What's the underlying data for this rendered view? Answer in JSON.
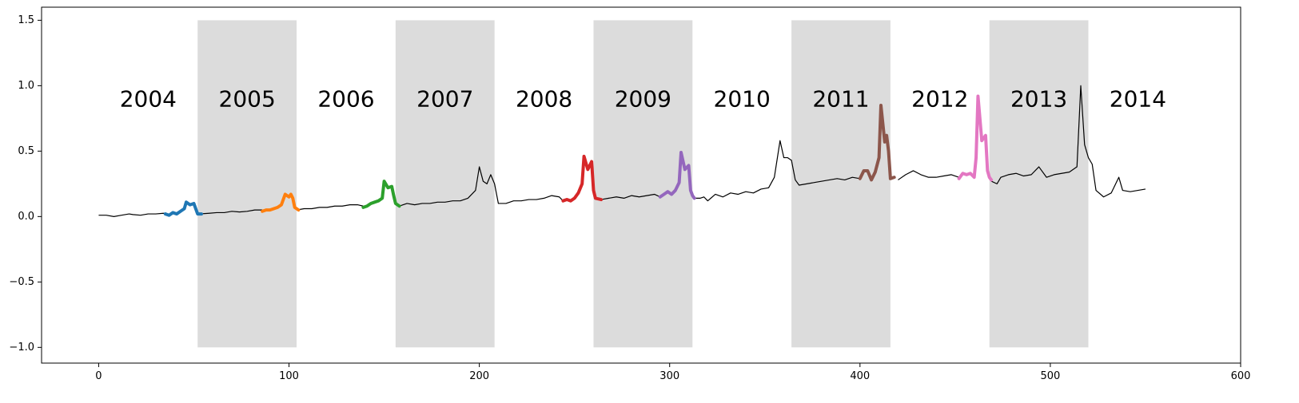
{
  "chart_data": {
    "type": "line",
    "title": "",
    "xlabel": "",
    "ylabel": "",
    "xlim": [
      -30,
      600
    ],
    "ylim": [
      -1.12,
      1.6
    ],
    "xticks": [
      0,
      100,
      200,
      300,
      400,
      500,
      600
    ],
    "yticks": [
      -1.0,
      -0.5,
      0.0,
      0.5,
      1.0,
      1.5
    ],
    "ytick_labels": [
      "−1.0",
      "−0.5",
      "0.0",
      "0.5",
      "1.0",
      "1.5"
    ],
    "grid": false,
    "colors": {
      "base": "#000000",
      "shade": "#dcdcdc",
      "highlights": [
        "#1f77b4",
        "#ff7f0e",
        "#2ca02c",
        "#d62728",
        "#9467bd",
        "#8c564b",
        "#e377c2"
      ]
    },
    "year_bands": [
      {
        "label": "2004",
        "x_start": 0,
        "x_end": 52,
        "shaded": false
      },
      {
        "label": "2005",
        "x_start": 52,
        "x_end": 104,
        "shaded": true
      },
      {
        "label": "2006",
        "x_start": 104,
        "x_end": 156,
        "shaded": false
      },
      {
        "label": "2007",
        "x_start": 156,
        "x_end": 208,
        "shaded": true
      },
      {
        "label": "2008",
        "x_start": 208,
        "x_end": 260,
        "shaded": false
      },
      {
        "label": "2009",
        "x_start": 260,
        "x_end": 312,
        "shaded": true
      },
      {
        "label": "2010",
        "x_start": 312,
        "x_end": 364,
        "shaded": false
      },
      {
        "label": "2011",
        "x_start": 364,
        "x_end": 416,
        "shaded": true
      },
      {
        "label": "2012",
        "x_start": 416,
        "x_end": 468,
        "shaded": false
      },
      {
        "label": "2013",
        "x_start": 468,
        "x_end": 520,
        "shaded": true
      },
      {
        "label": "2014",
        "x_start": 520,
        "x_end": 572,
        "shaded": false
      }
    ],
    "band_y_range": [
      -1.0,
      1.5
    ],
    "year_label_y": 0.9,
    "base_series": [
      [
        0,
        0.01
      ],
      [
        4,
        0.01
      ],
      [
        8,
        0.0
      ],
      [
        12,
        0.01
      ],
      [
        16,
        0.02
      ],
      [
        18,
        0.015
      ],
      [
        22,
        0.01
      ],
      [
        26,
        0.02
      ],
      [
        30,
        0.02
      ],
      [
        34,
        0.025
      ],
      [
        36,
        0.02
      ],
      [
        53,
        0.02
      ],
      [
        58,
        0.025
      ],
      [
        62,
        0.03
      ],
      [
        66,
        0.03
      ],
      [
        70,
        0.04
      ],
      [
        74,
        0.035
      ],
      [
        78,
        0.04
      ],
      [
        82,
        0.05
      ],
      [
        86,
        0.05
      ],
      [
        104,
        0.05
      ],
      [
        108,
        0.06
      ],
      [
        112,
        0.06
      ],
      [
        116,
        0.07
      ],
      [
        120,
        0.07
      ],
      [
        124,
        0.08
      ],
      [
        128,
        0.08
      ],
      [
        132,
        0.09
      ],
      [
        136,
        0.09
      ],
      [
        139,
        0.08
      ],
      [
        158,
        0.08
      ],
      [
        162,
        0.1
      ],
      [
        166,
        0.09
      ],
      [
        170,
        0.1
      ],
      [
        174,
        0.1
      ],
      [
        178,
        0.11
      ],
      [
        182,
        0.11
      ],
      [
        186,
        0.12
      ],
      [
        190,
        0.12
      ],
      [
        194,
        0.14
      ],
      [
        198,
        0.2
      ],
      [
        200,
        0.38
      ],
      [
        202,
        0.27
      ],
      [
        204,
        0.25
      ],
      [
        206,
        0.32
      ],
      [
        208,
        0.25
      ],
      [
        210,
        0.1
      ],
      [
        214,
        0.1
      ],
      [
        218,
        0.12
      ],
      [
        222,
        0.12
      ],
      [
        226,
        0.13
      ],
      [
        230,
        0.13
      ],
      [
        234,
        0.14
      ],
      [
        238,
        0.16
      ],
      [
        242,
        0.15
      ],
      [
        244,
        0.12
      ],
      [
        264,
        0.13
      ],
      [
        268,
        0.14
      ],
      [
        272,
        0.15
      ],
      [
        276,
        0.14
      ],
      [
        280,
        0.16
      ],
      [
        284,
        0.15
      ],
      [
        288,
        0.16
      ],
      [
        292,
        0.17
      ],
      [
        295,
        0.15
      ],
      [
        313,
        0.14
      ],
      [
        316,
        0.14
      ],
      [
        318,
        0.15
      ],
      [
        320,
        0.12
      ],
      [
        324,
        0.17
      ],
      [
        328,
        0.15
      ],
      [
        332,
        0.18
      ],
      [
        336,
        0.17
      ],
      [
        340,
        0.19
      ],
      [
        344,
        0.18
      ],
      [
        348,
        0.21
      ],
      [
        352,
        0.22
      ],
      [
        355,
        0.3
      ],
      [
        358,
        0.58
      ],
      [
        360,
        0.45
      ],
      [
        362,
        0.45
      ],
      [
        364,
        0.43
      ],
      [
        366,
        0.28
      ],
      [
        368,
        0.24
      ],
      [
        372,
        0.25
      ],
      [
        376,
        0.26
      ],
      [
        380,
        0.27
      ],
      [
        384,
        0.28
      ],
      [
        388,
        0.29
      ],
      [
        392,
        0.28
      ],
      [
        396,
        0.3
      ],
      [
        400,
        0.29
      ],
      [
        420,
        0.28
      ],
      [
        424,
        0.32
      ],
      [
        428,
        0.35
      ],
      [
        432,
        0.32
      ],
      [
        436,
        0.3
      ],
      [
        440,
        0.3
      ],
      [
        444,
        0.31
      ],
      [
        448,
        0.32
      ],
      [
        452,
        0.3
      ],
      [
        469,
        0.27
      ],
      [
        472,
        0.25
      ],
      [
        474,
        0.3
      ],
      [
        478,
        0.32
      ],
      [
        482,
        0.33
      ],
      [
        486,
        0.31
      ],
      [
        490,
        0.32
      ],
      [
        494,
        0.38
      ],
      [
        498,
        0.3
      ],
      [
        502,
        0.32
      ],
      [
        506,
        0.33
      ],
      [
        510,
        0.34
      ],
      [
        514,
        0.38
      ],
      [
        516,
        1.0
      ],
      [
        518,
        0.55
      ],
      [
        520,
        0.45
      ],
      [
        522,
        0.4
      ],
      [
        524,
        0.2
      ],
      [
        528,
        0.15
      ],
      [
        532,
        0.18
      ],
      [
        536,
        0.3
      ],
      [
        538,
        0.2
      ],
      [
        542,
        0.19
      ],
      [
        546,
        0.2
      ],
      [
        550,
        0.21
      ]
    ],
    "highlight_series": [
      {
        "points": [
          [
            35,
            0.02
          ],
          [
            37,
            0.01
          ],
          [
            39,
            0.03
          ],
          [
            41,
            0.02
          ],
          [
            43,
            0.04
          ],
          [
            45,
            0.06
          ],
          [
            46,
            0.11
          ],
          [
            48,
            0.09
          ],
          [
            50,
            0.1
          ],
          [
            51,
            0.06
          ],
          [
            52,
            0.02
          ],
          [
            54,
            0.02
          ]
        ]
      },
      {
        "points": [
          [
            86,
            0.04
          ],
          [
            88,
            0.05
          ],
          [
            90,
            0.05
          ],
          [
            92,
            0.06
          ],
          [
            94,
            0.07
          ],
          [
            96,
            0.09
          ],
          [
            98,
            0.17
          ],
          [
            100,
            0.15
          ],
          [
            101,
            0.17
          ],
          [
            102,
            0.14
          ],
          [
            103,
            0.07
          ],
          [
            105,
            0.05
          ]
        ]
      },
      {
        "points": [
          [
            139,
            0.07
          ],
          [
            141,
            0.08
          ],
          [
            143,
            0.1
          ],
          [
            145,
            0.11
          ],
          [
            147,
            0.12
          ],
          [
            149,
            0.14
          ],
          [
            150,
            0.27
          ],
          [
            152,
            0.22
          ],
          [
            154,
            0.23
          ],
          [
            155,
            0.16
          ],
          [
            156,
            0.1
          ],
          [
            158,
            0.08
          ]
        ]
      },
      {
        "points": [
          [
            244,
            0.12
          ],
          [
            246,
            0.13
          ],
          [
            248,
            0.12
          ],
          [
            250,
            0.14
          ],
          [
            252,
            0.18
          ],
          [
            254,
            0.25
          ],
          [
            255,
            0.46
          ],
          [
            257,
            0.36
          ],
          [
            259,
            0.42
          ],
          [
            260,
            0.2
          ],
          [
            261,
            0.14
          ],
          [
            264,
            0.13
          ]
        ]
      },
      {
        "points": [
          [
            295,
            0.15
          ],
          [
            297,
            0.17
          ],
          [
            299,
            0.19
          ],
          [
            301,
            0.17
          ],
          [
            303,
            0.2
          ],
          [
            305,
            0.26
          ],
          [
            306,
            0.49
          ],
          [
            308,
            0.36
          ],
          [
            310,
            0.39
          ],
          [
            311,
            0.2
          ],
          [
            312,
            0.16
          ],
          [
            313,
            0.14
          ]
        ]
      },
      {
        "points": [
          [
            400,
            0.29
          ],
          [
            402,
            0.35
          ],
          [
            404,
            0.35
          ],
          [
            406,
            0.28
          ],
          [
            408,
            0.34
          ],
          [
            410,
            0.45
          ],
          [
            411,
            0.85
          ],
          [
            413,
            0.57
          ],
          [
            414,
            0.62
          ],
          [
            415,
            0.5
          ],
          [
            416,
            0.29
          ],
          [
            418,
            0.3
          ]
        ]
      },
      {
        "points": [
          [
            452,
            0.29
          ],
          [
            454,
            0.33
          ],
          [
            456,
            0.32
          ],
          [
            458,
            0.33
          ],
          [
            460,
            0.3
          ],
          [
            461,
            0.45
          ],
          [
            462,
            0.92
          ],
          [
            464,
            0.58
          ],
          [
            466,
            0.62
          ],
          [
            467,
            0.35
          ],
          [
            468,
            0.3
          ],
          [
            469,
            0.28
          ]
        ]
      }
    ]
  }
}
